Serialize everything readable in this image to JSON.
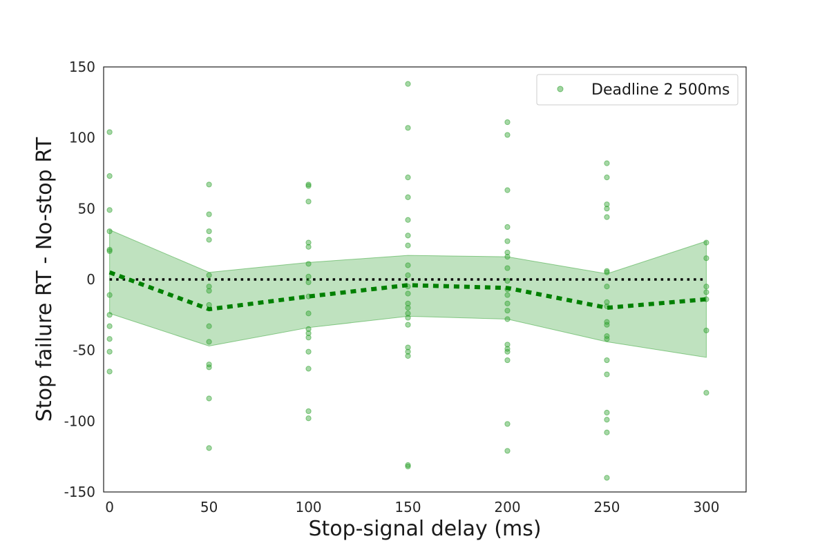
{
  "chart_data": {
    "type": "scatter",
    "xlabel": "Stop-signal delay (ms)",
    "ylabel": "Stop failure RT - No-stop RT",
    "xlim": [
      -3,
      320
    ],
    "ylim": [
      -150,
      150
    ],
    "x_ticks": [
      0,
      50,
      100,
      150,
      200,
      250,
      300
    ],
    "y_ticks": [
      -150,
      -100,
      -50,
      0,
      50,
      100,
      150
    ],
    "grid": false,
    "legend_position": "top-right",
    "reference_line": {
      "y": 0,
      "style": "dotted",
      "color": "#000000"
    },
    "colors": {
      "points": "#2ca02c",
      "mean_line": "#008000",
      "band": "#2ca02c"
    },
    "series": [
      {
        "name": "Deadline 2 500ms",
        "kind": "points",
        "points": [
          {
            "x": 0,
            "y": 104
          },
          {
            "x": 0,
            "y": 73
          },
          {
            "x": 0,
            "y": 49
          },
          {
            "x": 0,
            "y": 34
          },
          {
            "x": 0,
            "y": 21
          },
          {
            "x": 0,
            "y": 20
          },
          {
            "x": 0,
            "y": -11
          },
          {
            "x": 0,
            "y": -25
          },
          {
            "x": 0,
            "y": -33
          },
          {
            "x": 0,
            "y": -42
          },
          {
            "x": 0,
            "y": -51
          },
          {
            "x": 0,
            "y": -65
          },
          {
            "x": 50,
            "y": 67
          },
          {
            "x": 50,
            "y": 46
          },
          {
            "x": 50,
            "y": 34
          },
          {
            "x": 50,
            "y": 28
          },
          {
            "x": 50,
            "y": 3
          },
          {
            "x": 50,
            "y": -5
          },
          {
            "x": 50,
            "y": -8
          },
          {
            "x": 50,
            "y": -18
          },
          {
            "x": 50,
            "y": -33
          },
          {
            "x": 50,
            "y": -44
          },
          {
            "x": 50,
            "y": -60
          },
          {
            "x": 50,
            "y": -62
          },
          {
            "x": 50,
            "y": -84
          },
          {
            "x": 50,
            "y": -119
          },
          {
            "x": 100,
            "y": 67
          },
          {
            "x": 100,
            "y": 66
          },
          {
            "x": 100,
            "y": 55
          },
          {
            "x": 100,
            "y": 26
          },
          {
            "x": 100,
            "y": 23
          },
          {
            "x": 100,
            "y": 11
          },
          {
            "x": 100,
            "y": 2
          },
          {
            "x": 100,
            "y": -2
          },
          {
            "x": 100,
            "y": -12
          },
          {
            "x": 100,
            "y": -24
          },
          {
            "x": 100,
            "y": -35
          },
          {
            "x": 100,
            "y": -38
          },
          {
            "x": 100,
            "y": -41
          },
          {
            "x": 100,
            "y": -51
          },
          {
            "x": 100,
            "y": -63
          },
          {
            "x": 100,
            "y": -93
          },
          {
            "x": 100,
            "y": -98
          },
          {
            "x": 150,
            "y": 138
          },
          {
            "x": 150,
            "y": 107
          },
          {
            "x": 150,
            "y": 72
          },
          {
            "x": 150,
            "y": 58
          },
          {
            "x": 150,
            "y": 42
          },
          {
            "x": 150,
            "y": 31
          },
          {
            "x": 150,
            "y": 24
          },
          {
            "x": 150,
            "y": 10
          },
          {
            "x": 150,
            "y": 3
          },
          {
            "x": 150,
            "y": -5
          },
          {
            "x": 150,
            "y": -10
          },
          {
            "x": 150,
            "y": -17
          },
          {
            "x": 150,
            "y": -20
          },
          {
            "x": 150,
            "y": -24
          },
          {
            "x": 150,
            "y": -27
          },
          {
            "x": 150,
            "y": -32
          },
          {
            "x": 150,
            "y": -48
          },
          {
            "x": 150,
            "y": -51
          },
          {
            "x": 150,
            "y": -54
          },
          {
            "x": 150,
            "y": -131
          },
          {
            "x": 150,
            "y": -132
          },
          {
            "x": 200,
            "y": 111
          },
          {
            "x": 200,
            "y": 102
          },
          {
            "x": 200,
            "y": 63
          },
          {
            "x": 200,
            "y": 37
          },
          {
            "x": 200,
            "y": 27
          },
          {
            "x": 200,
            "y": 19
          },
          {
            "x": 200,
            "y": 16
          },
          {
            "x": 200,
            "y": 8
          },
          {
            "x": 200,
            "y": -1
          },
          {
            "x": 200,
            "y": -7
          },
          {
            "x": 200,
            "y": -11
          },
          {
            "x": 200,
            "y": -17
          },
          {
            "x": 200,
            "y": -22
          },
          {
            "x": 200,
            "y": -28
          },
          {
            "x": 200,
            "y": -46
          },
          {
            "x": 200,
            "y": -49
          },
          {
            "x": 200,
            "y": -51
          },
          {
            "x": 200,
            "y": -57
          },
          {
            "x": 200,
            "y": -102
          },
          {
            "x": 200,
            "y": -121
          },
          {
            "x": 250,
            "y": 82
          },
          {
            "x": 250,
            "y": 72
          },
          {
            "x": 250,
            "y": 53
          },
          {
            "x": 250,
            "y": 50
          },
          {
            "x": 250,
            "y": 44
          },
          {
            "x": 250,
            "y": 6
          },
          {
            "x": 250,
            "y": 5
          },
          {
            "x": 250,
            "y": -5
          },
          {
            "x": 250,
            "y": -16
          },
          {
            "x": 250,
            "y": -19
          },
          {
            "x": 250,
            "y": -30
          },
          {
            "x": 250,
            "y": -32
          },
          {
            "x": 250,
            "y": -40
          },
          {
            "x": 250,
            "y": -42
          },
          {
            "x": 250,
            "y": -57
          },
          {
            "x": 250,
            "y": -67
          },
          {
            "x": 250,
            "y": -94
          },
          {
            "x": 250,
            "y": -99
          },
          {
            "x": 250,
            "y": -108
          },
          {
            "x": 250,
            "y": -140
          },
          {
            "x": 300,
            "y": 26
          },
          {
            "x": 300,
            "y": 15
          },
          {
            "x": 300,
            "y": -5
          },
          {
            "x": 300,
            "y": -9
          },
          {
            "x": 300,
            "y": -14
          },
          {
            "x": 300,
            "y": -36
          },
          {
            "x": 300,
            "y": -80
          }
        ]
      },
      {
        "kind": "mean-line",
        "x": [
          0,
          50,
          100,
          150,
          200,
          250,
          300
        ],
        "y": [
          5,
          -21,
          -12,
          -4,
          -6,
          -20,
          -14
        ]
      },
      {
        "kind": "interval-band",
        "x": [
          0,
          50,
          100,
          150,
          200,
          250,
          300
        ],
        "upper": [
          35,
          5,
          12,
          17,
          16,
          4,
          27
        ],
        "lower": [
          -24,
          -47,
          -34,
          -26,
          -28,
          -44,
          -55
        ]
      }
    ]
  }
}
